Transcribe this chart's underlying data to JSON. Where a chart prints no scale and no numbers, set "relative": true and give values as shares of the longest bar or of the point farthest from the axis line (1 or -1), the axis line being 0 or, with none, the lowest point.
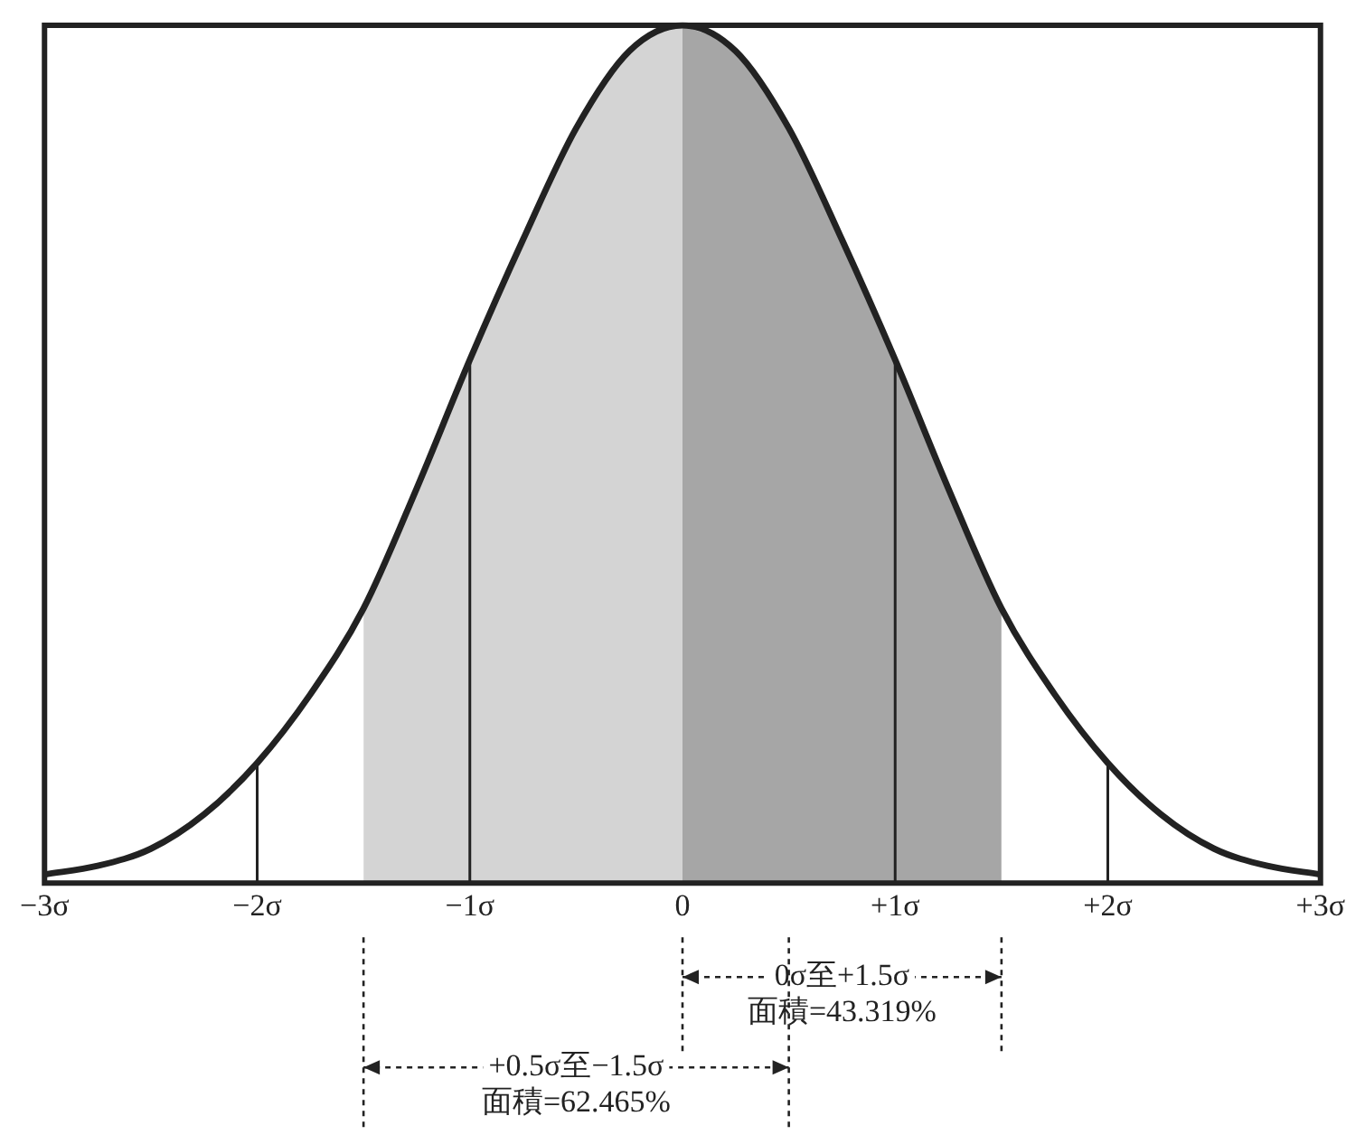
{
  "chart_data": {
    "type": "line",
    "relative": true,
    "x": [
      -3,
      -2.75,
      -2.5,
      -2.25,
      -2,
      -1.75,
      -1.5,
      -1.25,
      -1,
      -0.75,
      -0.5,
      -0.25,
      0,
      0.25,
      0.5,
      0.75,
      1,
      1.25,
      1.5,
      1.75,
      2,
      2.25,
      2.5,
      2.75,
      3
    ],
    "series": [
      {
        "color": "#222222",
        "values": [
          0.01,
          0.02,
          0.04,
          0.08,
          0.14,
          0.22,
          0.32,
          0.46,
          0.61,
          0.75,
          0.88,
          0.97,
          1,
          0.97,
          0.88,
          0.75,
          0.61,
          0.46,
          0.32,
          0.22,
          0.14,
          0.08,
          0.04,
          0.02,
          0.01
        ]
      },
      {
        "type": "area",
        "color": "#a6a6a6",
        "x": [
          0,
          0.25,
          0.5,
          0.75,
          1,
          1.25,
          1.5
        ],
        "values": [
          1,
          0.97,
          0.88,
          0.75,
          0.61,
          0.46,
          0.32
        ]
      },
      {
        "type": "area",
        "color": "#d4d4d4",
        "x": [
          -1.5,
          -1.25,
          -1,
          -0.75,
          -0.5,
          -0.25,
          0,
          0.25,
          0.5
        ],
        "values": [
          0.32,
          0.46,
          0.61,
          0.75,
          0.88,
          0.97,
          1,
          0.97,
          0.88
        ]
      }
    ],
    "xlim": [
      -3,
      3
    ],
    "xticks": [
      {
        "value": -3,
        "label": "−3σ"
      },
      {
        "value": -2,
        "label": "−2σ"
      },
      {
        "value": -1,
        "label": "−1σ"
      },
      0,
      {
        "value": 1,
        "label": "+1σ"
      },
      {
        "value": 2,
        "label": "+2σ"
      },
      {
        "value": 3,
        "label": "+3σ"
      }
    ],
    "grid": false,
    "legend": false,
    "ref_lines": [
      {
        "axis": "x",
        "value": -2
      },
      {
        "axis": "x",
        "value": -1
      },
      {
        "axis": "x",
        "value": 1
      },
      {
        "axis": "x",
        "value": 2
      }
    ],
    "annotations": [
      "0σ至+1.5σ",
      "面積=43.319%",
      "+0.5σ至−1.5σ",
      "面積=62.465%"
    ]
  }
}
